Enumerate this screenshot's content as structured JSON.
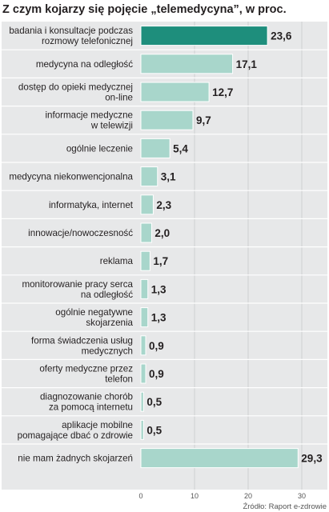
{
  "chart_data": {
    "type": "bar",
    "orientation": "horizontal",
    "title": "Z czym kojarzy się pojęcie „telemedycyna”, w proc.",
    "categories": [
      [
        "badania i konsultacje podczas",
        "rozmowy telefonicznej"
      ],
      [
        "medycyna na odległość"
      ],
      [
        "dostęp do opieki medycznej",
        "on-line"
      ],
      [
        "informacje medyczne",
        "w telewizji"
      ],
      [
        "ogólnie leczenie"
      ],
      [
        "medycyna niekonwencjonalna"
      ],
      [
        "informatyka, internet"
      ],
      [
        "innowacje/nowoczesność"
      ],
      [
        "reklama"
      ],
      [
        "monitorowanie pracy serca",
        "na odległość"
      ],
      [
        "ogólnie negatywne",
        "skojarzenia"
      ],
      [
        "forma świadczenia usług",
        "medycznych"
      ],
      [
        "oferty medyczne przez",
        "telefon"
      ],
      [
        "diagnozowanie chorób",
        "za pomocą internetu"
      ],
      [
        "aplikacje mobilne",
        "pomagające dbać o zdrowie"
      ],
      [
        "nie mam żadnych skojarzeń"
      ]
    ],
    "values": [
      23.6,
      17.1,
      12.7,
      9.7,
      5.4,
      3.1,
      2.3,
      2.0,
      1.7,
      1.3,
      1.3,
      0.9,
      0.9,
      0.5,
      0.5,
      29.3
    ],
    "value_labels": [
      "23,6",
      "17,1",
      "12,7",
      "9,7",
      "5,4",
      "3,1",
      "2,3",
      "2,0",
      "1,7",
      "1,3",
      "1,3",
      "0,9",
      "0,9",
      "0,5",
      "0,5",
      "29,3"
    ],
    "x_ticks": [
      0,
      10,
      20,
      30
    ],
    "xlim": [
      0,
      30
    ],
    "highlight_index": 0,
    "source": "Źródło: Raport e-zdrowie",
    "colors": {
      "highlight_bar": "#1e8e7c",
      "bar": "#a8d6cb",
      "bar_outline": "#ffffff",
      "panel_background": "#e7e8e9",
      "row_separator": "#ffffff",
      "gridline": "#c9cacb",
      "text": "#231f20",
      "axis_text": "#555555"
    }
  }
}
